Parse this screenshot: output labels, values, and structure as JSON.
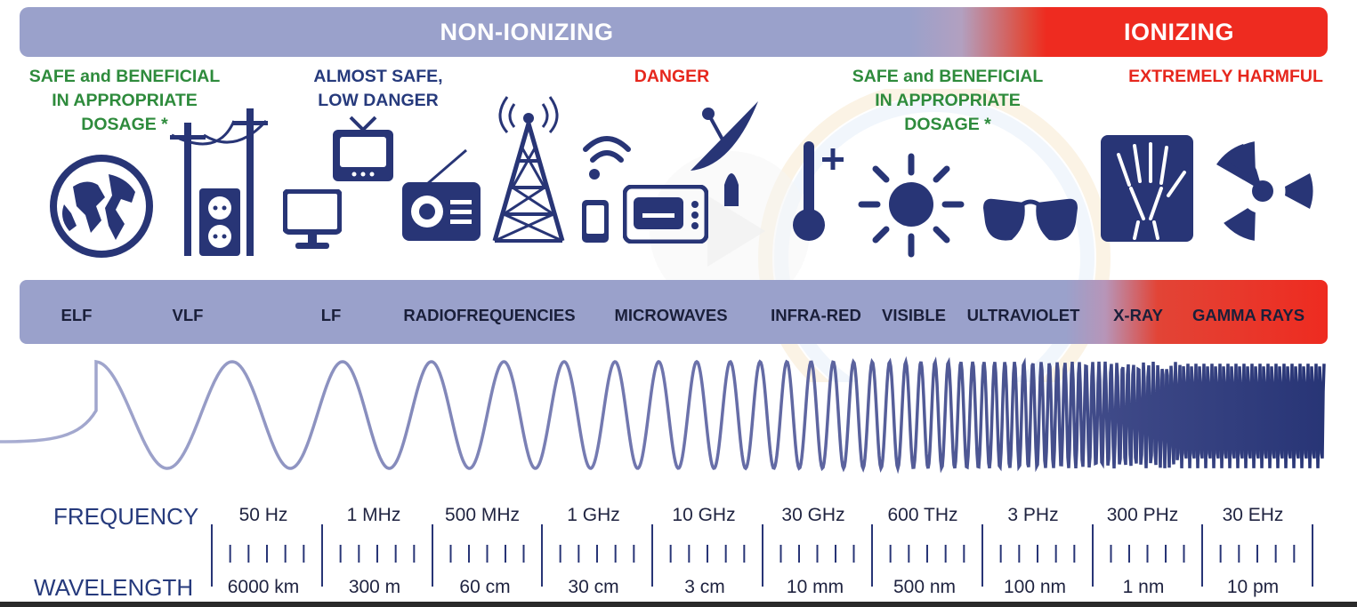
{
  "header": {
    "non_ionizing_label": "NON-IONIZING",
    "ionizing_label": "IONIZING"
  },
  "categories": [
    {
      "lines": [
        "SAFE and BENEFICIAL",
        "IN APPROPRIATE",
        "DOSAGE *"
      ],
      "color": "#2e8b3c"
    },
    {
      "lines": [
        "ALMOST SAFE,",
        "LOW DANGER"
      ],
      "color": "#263a7c"
    },
    {
      "lines": [
        "DANGER"
      ],
      "color": "#e6271d"
    },
    {
      "lines": [
        "SAFE and BENEFICIAL",
        "IN APPROPRIATE",
        "DOSAGE *"
      ],
      "color": "#2e8b3c"
    },
    {
      "lines": [
        "EXTREMELY HARMFUL"
      ],
      "color": "#e6271d"
    }
  ],
  "icons": [
    "globe-icon",
    "power-pole-icon",
    "power-socket-icon",
    "computer-monitor-icon",
    "tv-icon",
    "radio-icon",
    "radio-tower-icon",
    "wifi-icon",
    "mobile-phone-icon",
    "microwave-oven-icon",
    "satellite-dish-icon",
    "thermometer-icon",
    "sun-icon",
    "sunglasses-icon",
    "xray-hand-icon",
    "radiation-icon"
  ],
  "bands": [
    "ELF",
    "VLF",
    "LF",
    "RADIOFREQUENCIES",
    "MICROWAVES",
    "INFRA-RED",
    "VISIBLE",
    "ULTRAVIOLET",
    "X-RAY",
    "GAMMA RAYS"
  ],
  "scale": {
    "frequency_title": "FREQUENCY",
    "wavelength_title": "WAVELENGTH",
    "frequencies": [
      "50 Hz",
      "1 MHz",
      "500 MHz",
      "1 GHz",
      "10 GHz",
      "30 GHz",
      "600 THz",
      "3 PHz",
      "300 PHz",
      "30 EHz"
    ],
    "wavelengths": [
      "6000 km",
      "300 m",
      "60 cm",
      "30 cm",
      "3 cm",
      "10 mm",
      "500 nm",
      "100 nm",
      "1 nm",
      "10 pm"
    ]
  },
  "colors": {
    "non_ionizing": "#9aa1cb",
    "ionizing": "#ee2b20",
    "icon_navy": "#283576",
    "safe_green": "#2e8b3c",
    "danger_red": "#e6271d"
  }
}
